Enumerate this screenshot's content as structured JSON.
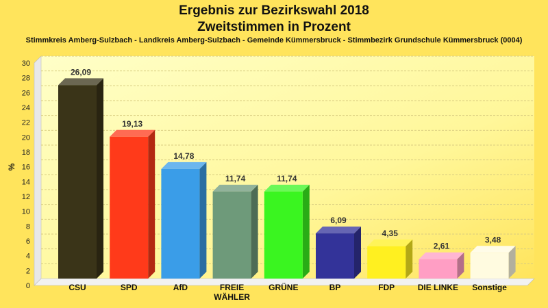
{
  "chart_data": {
    "type": "bar",
    "title": "Ergebnis zur Bezirkswahl 2018",
    "title2": "Zweitstimmen in Prozent",
    "subtitle": "Stimmkreis Amberg-Sulzbach - Landkreis Amberg-Sulzbach - Gemeinde Kümmersbruck - Stimmbezirk Grundschule Kümmersbruck (0004)",
    "ylabel": "%",
    "ylim": [
      0,
      30
    ],
    "yticks": [
      "0",
      "2",
      "4",
      "6",
      "8",
      "10",
      "12",
      "14",
      "16",
      "18",
      "20",
      "22",
      "24",
      "26",
      "28",
      "30"
    ],
    "categories": [
      [
        "CSU"
      ],
      [
        "SPD"
      ],
      [
        "AfD"
      ],
      [
        "FREIE",
        "WÄHLER"
      ],
      [
        "GRÜNE"
      ],
      [
        "BP"
      ],
      [
        "FDP"
      ],
      [
        "DIE LINKE"
      ],
      [
        "Sonstige"
      ]
    ],
    "values": [
      26.09,
      19.13,
      14.78,
      11.74,
      11.74,
      6.09,
      4.35,
      2.61,
      3.48
    ],
    "value_labels": [
      "26,09",
      "19,13",
      "14,78",
      "11,74",
      "11,74",
      "6,09",
      "4,35",
      "2,61",
      "3,48"
    ],
    "colors": [
      "#3A3418",
      "#FF3A1A",
      "#3A9DE8",
      "#6E9A7A",
      "#3AF520",
      "#333399",
      "#FFF020",
      "#FF9EC4",
      "#FFFBE0"
    ],
    "grid": true
  }
}
